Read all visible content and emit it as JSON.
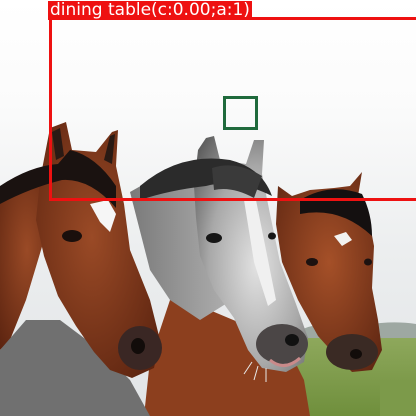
{
  "image": {
    "subject": "horse-photograph"
  },
  "detections": [
    {
      "label": "dining table(c:0.00;a:1)",
      "color": "#ee1111"
    },
    {
      "label": "",
      "color": "#1f6a3c"
    }
  ]
}
